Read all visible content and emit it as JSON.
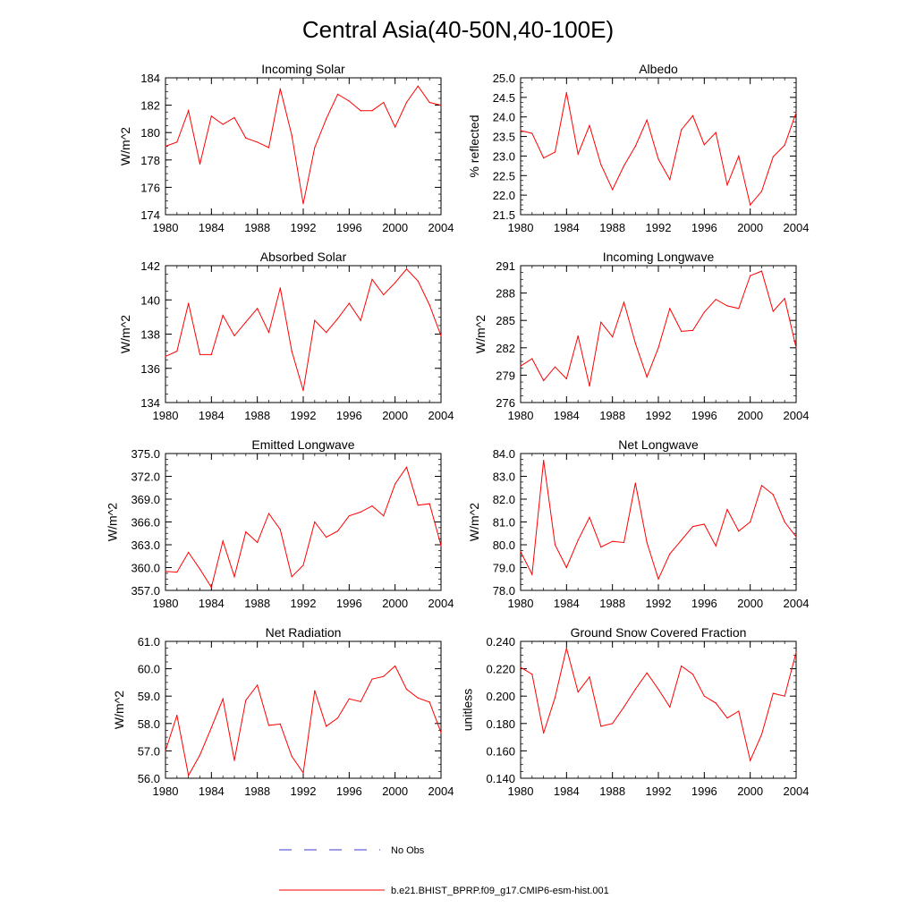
{
  "figure": {
    "title": "Central Asia(40-50N,40-100E)",
    "legend": [
      {
        "label": "No Obs",
        "color": "#3a3ad0",
        "dash": "dashed"
      },
      {
        "label": "b.e21.BHIST_BPRP.f09_g17.CMIP6-esm-hist.001",
        "color": "#ff0000",
        "dash": "solid"
      }
    ]
  },
  "chart_data": [
    {
      "type": "line",
      "title": "Incoming Solar",
      "ylabel": "W/m^2",
      "xlim": [
        1980,
        2004
      ],
      "ylim": [
        174,
        184
      ],
      "xticks": [
        1980,
        1984,
        1988,
        1992,
        1996,
        2000,
        2004
      ],
      "yticks": [
        "174",
        "176",
        "178",
        "180",
        "182",
        "184"
      ],
      "x": [
        1980,
        1981,
        1982,
        1983,
        1984,
        1985,
        1986,
        1987,
        1988,
        1989,
        1990,
        1991,
        1992,
        1993,
        1994,
        1995,
        1996,
        1997,
        1998,
        1999,
        2000,
        2001,
        2002,
        2003,
        2004
      ],
      "series": [
        {
          "name": "b.e21.BHIST_BPRP.f09_g17.CMIP6-esm-hist.001",
          "values": [
            179.0,
            179.3,
            181.6,
            177.7,
            181.2,
            180.6,
            181.1,
            179.6,
            179.3,
            178.9,
            183.2,
            179.8,
            174.8,
            178.9,
            181.0,
            182.8,
            182.3,
            181.6,
            181.6,
            182.2,
            180.4,
            182.2,
            183.4,
            182.2,
            182.0
          ]
        }
      ]
    },
    {
      "type": "line",
      "title": "Albedo",
      "ylabel": "% reflected",
      "xlim": [
        1980,
        2004
      ],
      "ylim": [
        21.5,
        25.0
      ],
      "xticks": [
        1980,
        1984,
        1988,
        1992,
        1996,
        2000,
        2004
      ],
      "yticks": [
        "21.5",
        "22.0",
        "22.5",
        "23.0",
        "23.5",
        "24.0",
        "24.5",
        "25.0"
      ],
      "x": [
        1980,
        1981,
        1982,
        1983,
        1984,
        1985,
        1986,
        1987,
        1988,
        1989,
        1990,
        1991,
        1992,
        1993,
        1994,
        1995,
        1996,
        1997,
        1998,
        1999,
        2000,
        2001,
        2002,
        2003,
        2004
      ],
      "series": [
        {
          "name": "b.e21.BHIST_BPRP.f09_g17.CMIP6-esm-hist.001",
          "values": [
            23.65,
            23.58,
            22.95,
            23.1,
            24.62,
            23.05,
            23.78,
            22.78,
            22.14,
            22.75,
            23.25,
            23.92,
            22.92,
            22.4,
            23.67,
            24.03,
            23.29,
            23.6,
            22.26,
            23.0,
            21.75,
            22.1,
            22.98,
            23.28,
            24.11
          ]
        }
      ]
    },
    {
      "type": "line",
      "title": "Absorbed Solar",
      "ylabel": "W/m^2",
      "xlim": [
        1980,
        2004
      ],
      "ylim": [
        134,
        142
      ],
      "xticks": [
        1980,
        1984,
        1988,
        1992,
        1996,
        2000,
        2004
      ],
      "yticks": [
        "134",
        "136",
        "138",
        "140",
        "142"
      ],
      "x": [
        1980,
        1981,
        1982,
        1983,
        1984,
        1985,
        1986,
        1987,
        1988,
        1989,
        1990,
        1991,
        1992,
        1993,
        1994,
        1995,
        1996,
        1997,
        1998,
        1999,
        2000,
        2001,
        2002,
        2003,
        2004
      ],
      "series": [
        {
          "name": "b.e21.BHIST_BPRP.f09_g17.CMIP6-esm-hist.001",
          "values": [
            136.7,
            137.0,
            139.8,
            136.8,
            136.8,
            139.1,
            137.9,
            138.7,
            139.5,
            138.1,
            140.7,
            137.0,
            134.7,
            138.8,
            138.1,
            138.9,
            139.8,
            138.8,
            141.2,
            140.3,
            141.0,
            141.8,
            141.1,
            139.7,
            137.9
          ]
        }
      ]
    },
    {
      "type": "line",
      "title": "Incoming Longwave",
      "ylabel": "W/m^2",
      "xlim": [
        1980,
        2004
      ],
      "ylim": [
        276,
        291
      ],
      "xticks": [
        1980,
        1984,
        1988,
        1992,
        1996,
        2000,
        2004
      ],
      "yticks": [
        "276",
        "279",
        "282",
        "285",
        "288",
        "291"
      ],
      "x": [
        1980,
        1981,
        1982,
        1983,
        1984,
        1985,
        1986,
        1987,
        1988,
        1989,
        1990,
        1991,
        1992,
        1993,
        1994,
        1995,
        1996,
        1997,
        1998,
        1999,
        2000,
        2001,
        2002,
        2003,
        2004
      ],
      "series": [
        {
          "name": "b.e21.BHIST_BPRP.f09_g17.CMIP6-esm-hist.001",
          "values": [
            280.0,
            280.8,
            278.4,
            279.9,
            278.6,
            283.3,
            277.8,
            284.8,
            283.2,
            287.0,
            282.5,
            278.8,
            282.0,
            286.3,
            283.8,
            283.9,
            285.9,
            287.3,
            286.6,
            286.3,
            289.9,
            290.4,
            286.0,
            287.4,
            282.0
          ]
        }
      ]
    },
    {
      "type": "line",
      "title": "Emitted Longwave",
      "ylabel": "W/m^2",
      "xlim": [
        1980,
        2004
      ],
      "ylim": [
        357.0,
        375.0
      ],
      "xticks": [
        1980,
        1984,
        1988,
        1992,
        1996,
        2000,
        2004
      ],
      "yticks": [
        "357.0",
        "360.0",
        "363.0",
        "366.0",
        "369.0",
        "372.0",
        "375.0"
      ],
      "x": [
        1980,
        1981,
        1982,
        1983,
        1984,
        1985,
        1986,
        1987,
        1988,
        1989,
        1990,
        1991,
        1992,
        1993,
        1994,
        1995,
        1996,
        1997,
        1998,
        1999,
        2000,
        2001,
        2002,
        2003,
        2004
      ],
      "series": [
        {
          "name": "b.e21.BHIST_BPRP.f09_g17.CMIP6-esm-hist.001",
          "values": [
            359.5,
            359.4,
            362.0,
            359.8,
            357.4,
            363.5,
            358.8,
            364.7,
            363.3,
            367.1,
            365.0,
            358.8,
            360.3,
            366.0,
            364.0,
            364.8,
            366.8,
            367.3,
            368.1,
            366.8,
            371.0,
            373.2,
            368.2,
            368.4,
            362.9
          ]
        }
      ]
    },
    {
      "type": "line",
      "title": "Net Longwave",
      "ylabel": "W/m^2",
      "xlim": [
        1980,
        2004
      ],
      "ylim": [
        78.0,
        84.0
      ],
      "xticks": [
        1980,
        1984,
        1988,
        1992,
        1996,
        2000,
        2004
      ],
      "yticks": [
        "78.0",
        "79.0",
        "80.0",
        "81.0",
        "82.0",
        "83.0",
        "84.0"
      ],
      "x": [
        1980,
        1981,
        1982,
        1983,
        1984,
        1985,
        1986,
        1987,
        1988,
        1989,
        1990,
        1991,
        1992,
        1993,
        1994,
        1995,
        1996,
        1997,
        1998,
        1999,
        2000,
        2001,
        2002,
        2003,
        2004
      ],
      "series": [
        {
          "name": "b.e21.BHIST_BPRP.f09_g17.CMIP6-esm-hist.001",
          "values": [
            79.7,
            78.7,
            83.7,
            80.0,
            79.0,
            80.2,
            81.2,
            79.9,
            80.15,
            80.1,
            82.7,
            80.1,
            78.5,
            79.6,
            80.2,
            80.8,
            80.9,
            79.95,
            81.55,
            80.6,
            81.0,
            82.6,
            82.2,
            81.0,
            80.35
          ]
        }
      ]
    },
    {
      "type": "line",
      "title": "Net Radiation",
      "ylabel": "W/m^2",
      "xlim": [
        1980,
        2004
      ],
      "ylim": [
        56.0,
        61.0
      ],
      "xticks": [
        1980,
        1984,
        1988,
        1992,
        1996,
        2000,
        2004
      ],
      "yticks": [
        "56.0",
        "57.0",
        "58.0",
        "59.0",
        "60.0",
        "61.0"
      ],
      "x": [
        1980,
        1981,
        1982,
        1983,
        1984,
        1985,
        1986,
        1987,
        1988,
        1989,
        1990,
        1991,
        1992,
        1993,
        1994,
        1995,
        1996,
        1997,
        1998,
        1999,
        2000,
        2001,
        2002,
        2003,
        2004
      ],
      "series": [
        {
          "name": "b.e21.BHIST_BPRP.f09_g17.CMIP6-esm-hist.001",
          "values": [
            57.0,
            58.3,
            56.1,
            56.85,
            57.85,
            58.9,
            56.65,
            58.85,
            59.4,
            57.93,
            57.98,
            56.8,
            56.2,
            59.2,
            57.9,
            58.2,
            58.9,
            58.8,
            59.62,
            59.72,
            60.1,
            59.25,
            58.93,
            58.78,
            57.67
          ]
        }
      ]
    },
    {
      "type": "line",
      "title": "Ground Snow Covered Fraction",
      "ylabel": "unitless",
      "xlim": [
        1980,
        2004
      ],
      "ylim": [
        0.14,
        0.24
      ],
      "xticks": [
        1980,
        1984,
        1988,
        1992,
        1996,
        2000,
        2004
      ],
      "yticks": [
        "0.140",
        "0.160",
        "0.180",
        "0.200",
        "0.220",
        "0.240"
      ],
      "x": [
        1980,
        1981,
        1982,
        1983,
        1984,
        1985,
        1986,
        1987,
        1988,
        1989,
        1990,
        1991,
        1992,
        1993,
        1994,
        1995,
        1996,
        1997,
        1998,
        1999,
        2000,
        2001,
        2002,
        2003,
        2004
      ],
      "series": [
        {
          "name": "b.e21.BHIST_BPRP.f09_g17.CMIP6-esm-hist.001",
          "values": [
            0.221,
            0.216,
            0.173,
            0.199,
            0.235,
            0.203,
            0.214,
            0.178,
            0.18,
            0.192,
            0.205,
            0.217,
            0.205,
            0.192,
            0.222,
            0.216,
            0.2,
            0.195,
            0.184,
            0.189,
            0.153,
            0.172,
            0.202,
            0.2,
            0.232
          ]
        }
      ]
    }
  ]
}
